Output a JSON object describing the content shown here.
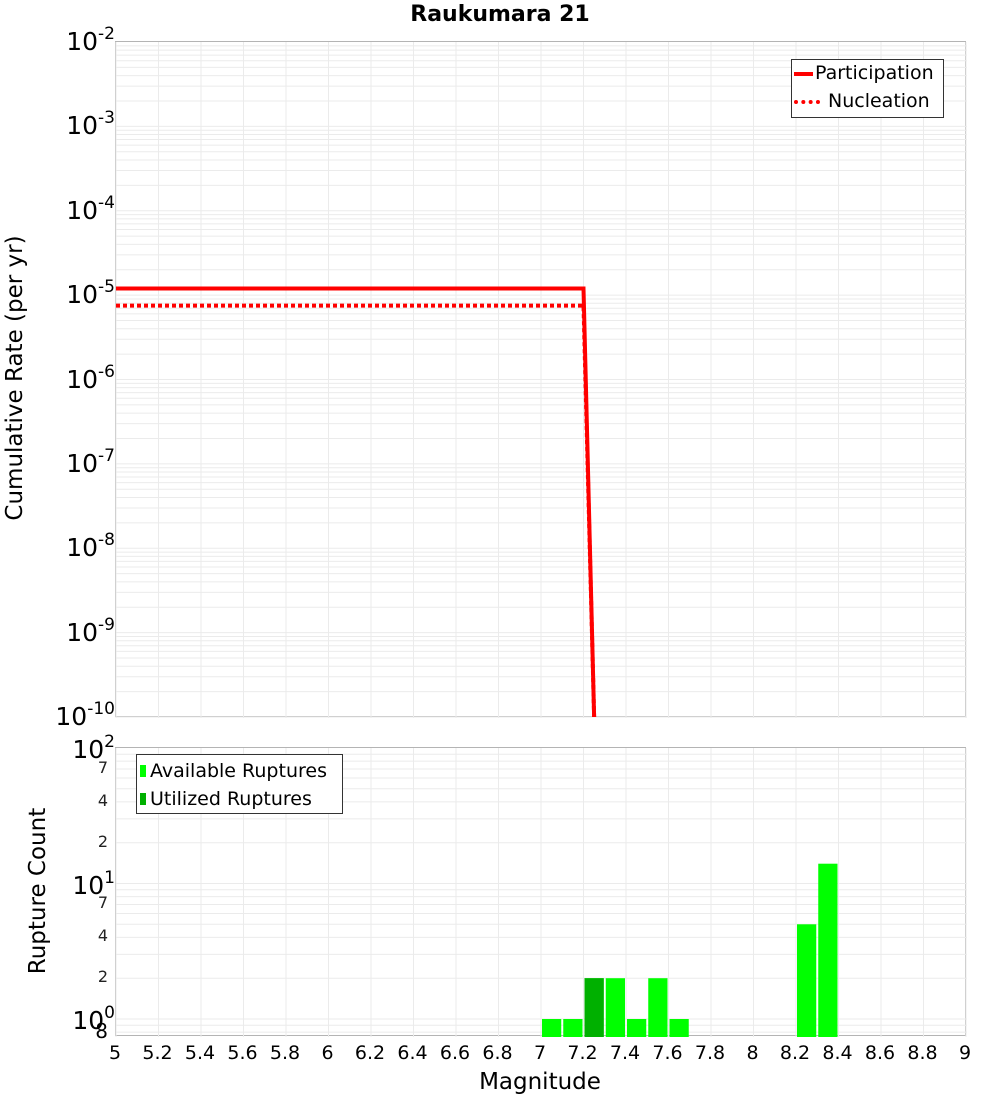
{
  "title": "Raukumara 21",
  "top_plot": {
    "ylabel": "Cumulative Rate (per yr)",
    "yticks": [
      {
        "base": "10",
        "exp": "-2"
      },
      {
        "base": "10",
        "exp": "-3"
      },
      {
        "base": "10",
        "exp": "-4"
      },
      {
        "base": "10",
        "exp": "-5"
      },
      {
        "base": "10",
        "exp": "-6"
      },
      {
        "base": "10",
        "exp": "-7"
      },
      {
        "base": "10",
        "exp": "-8"
      },
      {
        "base": "10",
        "exp": "-9"
      },
      {
        "base": "10",
        "exp": "-10"
      }
    ],
    "legend": [
      {
        "label": "Participation",
        "color": "#ff0000",
        "style": "solid"
      },
      {
        "label": "Nucleation",
        "color": "#ff0000",
        "style": "dotted"
      }
    ]
  },
  "bottom_plot": {
    "ylabel": "Rupture Count",
    "yticks_major": [
      {
        "base": "10",
        "exp": "2"
      },
      {
        "base": "10",
        "exp": "1"
      },
      {
        "base": "10",
        "exp": "0"
      }
    ],
    "yticks_minor": [
      "7",
      "4",
      "2",
      "7",
      "4",
      "2",
      "8"
    ],
    "legend": [
      {
        "label": "Available Ruptures",
        "color": "#00ff00"
      },
      {
        "label": "Utilized Ruptures",
        "color": "#00b000"
      }
    ]
  },
  "xaxis": {
    "label": "Magnitude",
    "ticks": [
      "5",
      "5.2",
      "5.4",
      "5.6",
      "5.8",
      "6",
      "6.2",
      "6.4",
      "6.6",
      "6.8",
      "7",
      "7.2",
      "7.4",
      "7.6",
      "7.8",
      "8",
      "8.2",
      "8.4",
      "8.6",
      "8.8",
      "9"
    ]
  },
  "chart_data": [
    {
      "type": "line",
      "title": "Raukumara 21",
      "xlabel": "Magnitude",
      "ylabel": "Cumulative Rate (per yr)",
      "xlim": [
        5,
        9
      ],
      "ylim": [
        1e-10,
        0.01
      ],
      "yscale": "log",
      "grid": true,
      "legend_position": "upper right",
      "series": [
        {
          "name": "Participation",
          "color": "#ff0000",
          "style": "solid",
          "x": [
            5.0,
            7.2,
            7.25
          ],
          "y": [
            1.2e-05,
            1.2e-05,
            1e-10
          ]
        },
        {
          "name": "Nucleation",
          "color": "#ff0000",
          "style": "dotted",
          "x": [
            5.0,
            7.2,
            7.25
          ],
          "y": [
            7.5e-06,
            7.5e-06,
            1e-10
          ]
        }
      ]
    },
    {
      "type": "bar",
      "xlabel": "Magnitude",
      "ylabel": "Rupture Count",
      "xlim": [
        5,
        9
      ],
      "ylim": [
        0.8,
        100
      ],
      "yscale": "log",
      "grid": true,
      "legend_position": "upper left",
      "bin_width": 0.1,
      "series": [
        {
          "name": "Available Ruptures",
          "color": "#00ff00",
          "x": [
            7.05,
            7.15,
            7.25,
            7.35,
            7.45,
            7.55,
            7.65,
            8.25,
            8.35
          ],
          "values": [
            1,
            1,
            2,
            2,
            1,
            2,
            1,
            5,
            14
          ]
        },
        {
          "name": "Utilized Ruptures",
          "color": "#00b000",
          "x": [
            7.25
          ],
          "values": [
            2
          ]
        }
      ]
    }
  ]
}
